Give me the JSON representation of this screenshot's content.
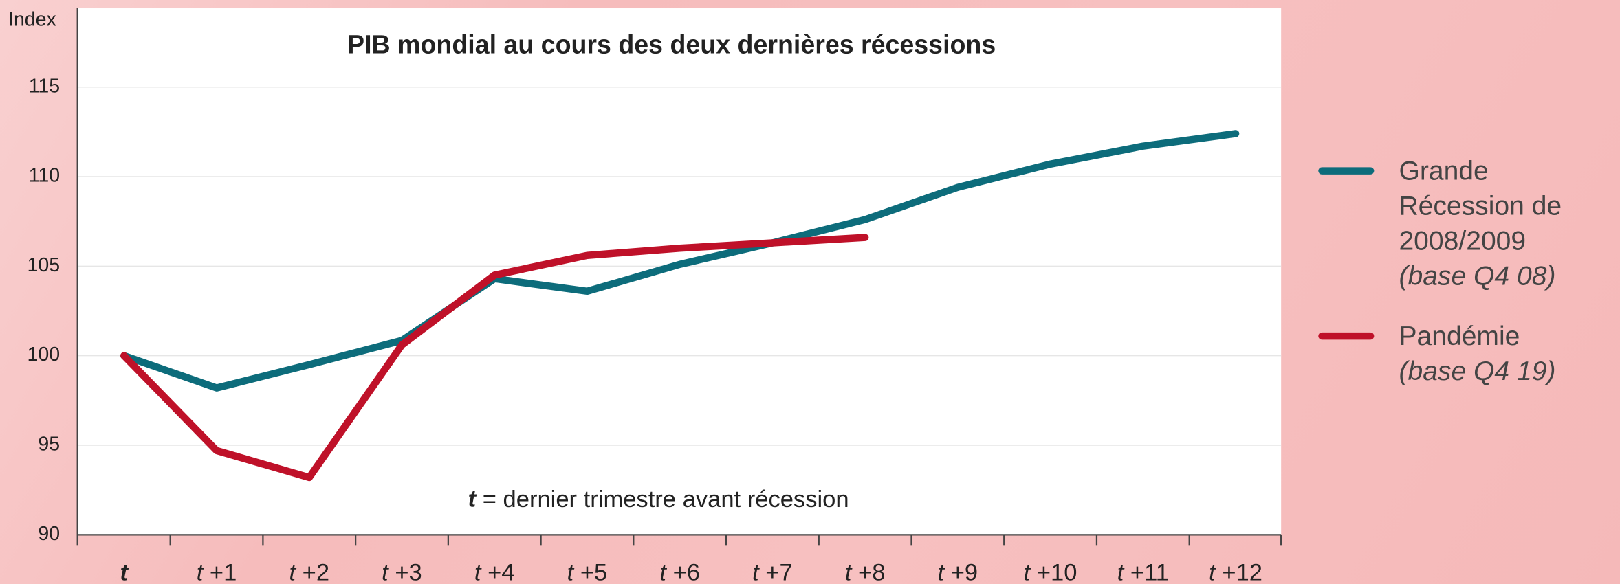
{
  "chart_data": {
    "type": "line",
    "title": "PIB mondial au cours des deux dernières récessions",
    "y_label": "Index",
    "annotation": "t = dernier trimestre avant récession",
    "categories": [
      "t",
      "t +1",
      "t +2",
      "t +3",
      "t +4",
      "t +5",
      "t +6",
      "t +7",
      "t +8",
      "t +9",
      "t +10",
      "t +11",
      "t +12"
    ],
    "series": [
      {
        "name": "Grande Récession de 2008/2009",
        "note": "(base Q4 08)",
        "color": "#0d6c7b",
        "values": [
          100,
          98.2,
          99.5,
          100.85,
          104.3,
          103.6,
          105.1,
          106.3,
          107.6,
          109.4,
          110.7,
          111.7,
          112.4
        ]
      },
      {
        "name": "Pandémie",
        "note": "(base Q4 19)",
        "color": "#bf1129",
        "values": [
          100,
          94.7,
          93.2,
          100.6,
          104.5,
          105.6,
          106.0,
          106.3,
          106.6,
          null,
          null,
          null,
          null
        ]
      }
    ],
    "ylim": [
      90,
      119.4
    ],
    "yticks": [
      90,
      95,
      100,
      105,
      110,
      115
    ],
    "grid": true,
    "legend": "right"
  }
}
